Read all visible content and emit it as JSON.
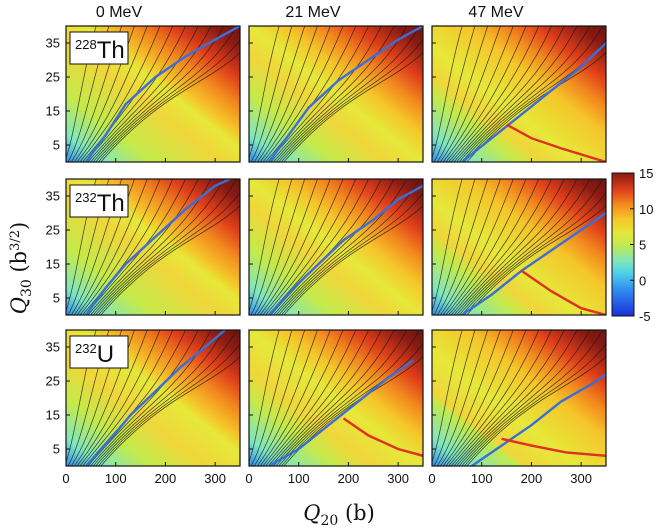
{
  "chart_data": {
    "type": "heatmap",
    "description_grid": "3x3 small multiples of potential energy surfaces",
    "column_titles": [
      "0 MeV",
      "21 MeV",
      "47 MeV"
    ],
    "row_nuclei": [
      {
        "mass": "228",
        "symbol": "Th"
      },
      {
        "mass": "232",
        "symbol": "Th"
      },
      {
        "mass": "232",
        "symbol": "U"
      }
    ],
    "xlabel_main": "Q",
    "xlabel_sub": "20",
    "xlabel_unit": " (b)",
    "ylabel_main": "Q",
    "ylabel_sub": "30",
    "ylabel_unit": " (b",
    "ylabel_unit_sup": "3/2",
    "ylabel_unit_close": ")",
    "xlim": [
      0,
      350
    ],
    "ylim": [
      0,
      40
    ],
    "xticks": [
      0,
      100,
      200,
      300
    ],
    "xtick_labels": [
      "0",
      "100",
      "200",
      "300"
    ],
    "yticks": [
      5,
      15,
      25,
      35
    ],
    "ytick_labels": [
      "5",
      "15",
      "25",
      "35"
    ],
    "colorbar": {
      "range": [
        -5,
        15
      ],
      "ticks": [
        15,
        10,
        5,
        0,
        -5
      ],
      "tick_labels": [
        "15",
        "10",
        "5",
        "0",
        "-5"
      ]
    },
    "paths": {
      "blue_path_color": "#3a6fd8",
      "red_path_color": "#e03020"
    },
    "panels": [
      {
        "row": 0,
        "col": 0,
        "blue": [
          [
            40,
            0
          ],
          [
            80,
            8
          ],
          [
            120,
            17
          ],
          [
            180,
            25
          ],
          [
            240,
            31
          ],
          [
            300,
            36
          ],
          [
            350,
            40
          ]
        ],
        "red": []
      },
      {
        "row": 0,
        "col": 1,
        "blue": [
          [
            40,
            0
          ],
          [
            80,
            8
          ],
          [
            120,
            16
          ],
          [
            180,
            24
          ],
          [
            240,
            30
          ],
          [
            300,
            36
          ],
          [
            350,
            40
          ]
        ],
        "red": []
      },
      {
        "row": 0,
        "col": 2,
        "blue": [
          [
            60,
            0
          ],
          [
            120,
            7
          ],
          [
            180,
            14
          ],
          [
            240,
            21
          ],
          [
            300,
            28
          ],
          [
            350,
            35
          ]
        ],
        "red": [
          [
            150,
            11
          ],
          [
            200,
            7
          ],
          [
            260,
            4
          ],
          [
            350,
            0
          ]
        ]
      },
      {
        "row": 1,
        "col": 0,
        "blue": [
          [
            40,
            0
          ],
          [
            80,
            8
          ],
          [
            120,
            15
          ],
          [
            180,
            23
          ],
          [
            240,
            31
          ],
          [
            300,
            38
          ],
          [
            330,
            40
          ]
        ],
        "red": []
      },
      {
        "row": 1,
        "col": 1,
        "blue": [
          [
            40,
            0
          ],
          [
            90,
            8
          ],
          [
            140,
            15
          ],
          [
            190,
            22
          ],
          [
            250,
            28
          ],
          [
            300,
            34
          ],
          [
            350,
            38
          ]
        ],
        "red": []
      },
      {
        "row": 1,
        "col": 2,
        "blue": [
          [
            60,
            0
          ],
          [
            120,
            6
          ],
          [
            180,
            13
          ],
          [
            240,
            19
          ],
          [
            300,
            25
          ],
          [
            350,
            30
          ]
        ],
        "red": [
          [
            180,
            13
          ],
          [
            240,
            7
          ],
          [
            300,
            2
          ],
          [
            350,
            0
          ]
        ]
      },
      {
        "row": 2,
        "col": 0,
        "blue": [
          [
            40,
            0
          ],
          [
            90,
            8
          ],
          [
            130,
            15
          ],
          [
            180,
            22
          ],
          [
            230,
            29
          ],
          [
            280,
            35
          ],
          [
            320,
            40
          ]
        ],
        "red": []
      },
      {
        "row": 2,
        "col": 1,
        "blue": [
          [
            40,
            0
          ],
          [
            100,
            5
          ],
          [
            160,
            12
          ],
          [
            220,
            19
          ],
          [
            280,
            26
          ],
          [
            330,
            31
          ]
        ],
        "red": [
          [
            190,
            14
          ],
          [
            240,
            9
          ],
          [
            300,
            5
          ],
          [
            350,
            3
          ]
        ]
      },
      {
        "row": 2,
        "col": 2,
        "blue": [
          [
            80,
            0
          ],
          [
            130,
            5
          ],
          [
            200,
            12
          ],
          [
            260,
            19
          ],
          [
            320,
            24
          ],
          [
            350,
            27
          ]
        ],
        "red": [
          [
            140,
            8
          ],
          [
            200,
            6
          ],
          [
            270,
            4
          ],
          [
            350,
            3
          ]
        ]
      }
    ]
  }
}
